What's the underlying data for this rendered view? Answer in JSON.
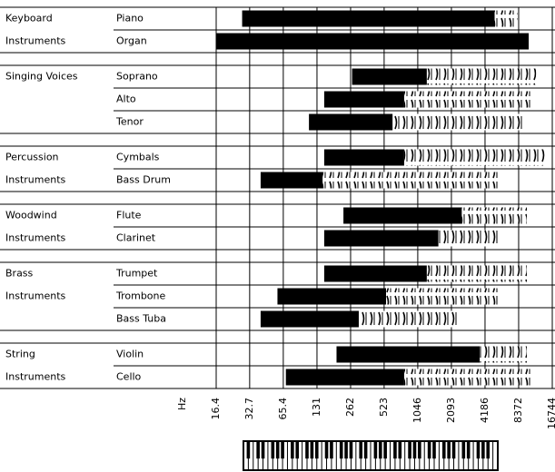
{
  "chart_data": {
    "type": "range",
    "x_label": "Hz",
    "log_x": true,
    "grid": true,
    "color": "#000000",
    "xlim": [
      16.4,
      16744
    ],
    "xticks": [
      16.4,
      32.7,
      65.4,
      131,
      262,
      523,
      1046,
      2093,
      4186,
      8372,
      16744
    ],
    "groups": [
      {
        "label": [
          "Keyboard",
          "Instruments"
        ],
        "instruments": [
          {
            "name": "Piano",
            "low": 28,
            "high": 5100,
            "harmonics": 8200
          },
          {
            "name": "Organ",
            "low": 16.4,
            "high": 10300
          }
        ]
      },
      {
        "label": [
          "Singing Voices"
        ],
        "instruments": [
          {
            "name": "Soprano",
            "low": 270,
            "high": 1260,
            "harmonics": 12000
          },
          {
            "name": "Alto",
            "low": 152,
            "high": 790,
            "harmonics": 11000
          },
          {
            "name": "Tenor",
            "low": 111,
            "high": 622,
            "harmonics": 9000
          }
        ]
      },
      {
        "label": [
          "Percussion",
          "Instruments"
        ],
        "instruments": [
          {
            "name": "Cymbals",
            "low": 152,
            "high": 790,
            "harmonics": 14400
          },
          {
            "name": "Bass Drum",
            "low": 41,
            "high": 147,
            "harmonics": 5660
          }
        ]
      },
      {
        "label": [
          "Woodwind",
          "Instruments"
        ],
        "instruments": [
          {
            "name": "Flute",
            "low": 226,
            "high": 2590,
            "harmonics": 9900
          },
          {
            "name": "Clarinet",
            "low": 152,
            "high": 1600,
            "harmonics": 5660
          }
        ]
      },
      {
        "label": [
          "Brass",
          "Instruments"
        ],
        "instruments": [
          {
            "name": "Trumpet",
            "low": 152,
            "high": 1260,
            "harmonics": 9900
          },
          {
            "name": "Trombone",
            "low": 58,
            "high": 544,
            "harmonics": 5660
          },
          {
            "name": "Bass Tuba",
            "low": 41,
            "high": 310,
            "harmonics": 2440
          }
        ]
      },
      {
        "label": [
          "String",
          "Instruments"
        ],
        "instruments": [
          {
            "name": "Violin",
            "low": 196,
            "high": 3750,
            "harmonics": 9900
          },
          {
            "name": "Cello",
            "low": 69,
            "high": 790,
            "harmonics": 11000
          }
        ]
      }
    ]
  }
}
